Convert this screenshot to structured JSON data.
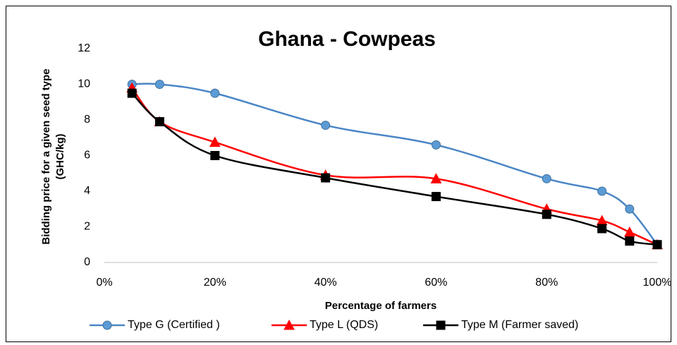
{
  "chart_data": {
    "type": "line",
    "title": "Ghana - Cowpeas",
    "xlabel": "Percentage of farmers",
    "ylabel": [
      "Bidding price for a given seed type",
      "(GHC/kg)"
    ],
    "x": [
      5,
      10,
      20,
      40,
      60,
      80,
      90,
      95,
      100
    ],
    "series": [
      {
        "name": "Type G (Certified )",
        "color": "#4a86c5",
        "marker": "circle",
        "marker_fill": "#5b9bd5",
        "values": [
          10,
          10,
          9.5,
          7.7,
          6.6,
          4.7,
          4.0,
          3.0,
          1.0
        ]
      },
      {
        "name": "Type L (QDS)",
        "color": "#ff0000",
        "marker": "triangle",
        "marker_fill": "#ff0000",
        "values": [
          9.8,
          7.9,
          6.75,
          4.9,
          4.7,
          3.0,
          2.35,
          1.7,
          1.0
        ]
      },
      {
        "name": "Type M (Farmer saved)",
        "color": "#000000",
        "marker": "square",
        "marker_fill": "#000000",
        "values": [
          9.5,
          7.9,
          6.0,
          4.75,
          3.7,
          2.7,
          1.9,
          1.2,
          1.0
        ]
      }
    ],
    "xlim": [
      0,
      100
    ],
    "xticks": [
      {
        "value": 0,
        "label": "0%"
      },
      {
        "value": 20,
        "label": "20%"
      },
      {
        "value": 40,
        "label": "40%"
      },
      {
        "value": 60,
        "label": "60%"
      },
      {
        "value": 80,
        "label": "80%"
      },
      {
        "value": 100,
        "label": "100%"
      }
    ],
    "ylim": [
      0,
      12
    ],
    "yticks": [
      0,
      2,
      4,
      6,
      8,
      10,
      12
    ],
    "grid": false,
    "smooth": true,
    "legend": "bottom"
  }
}
